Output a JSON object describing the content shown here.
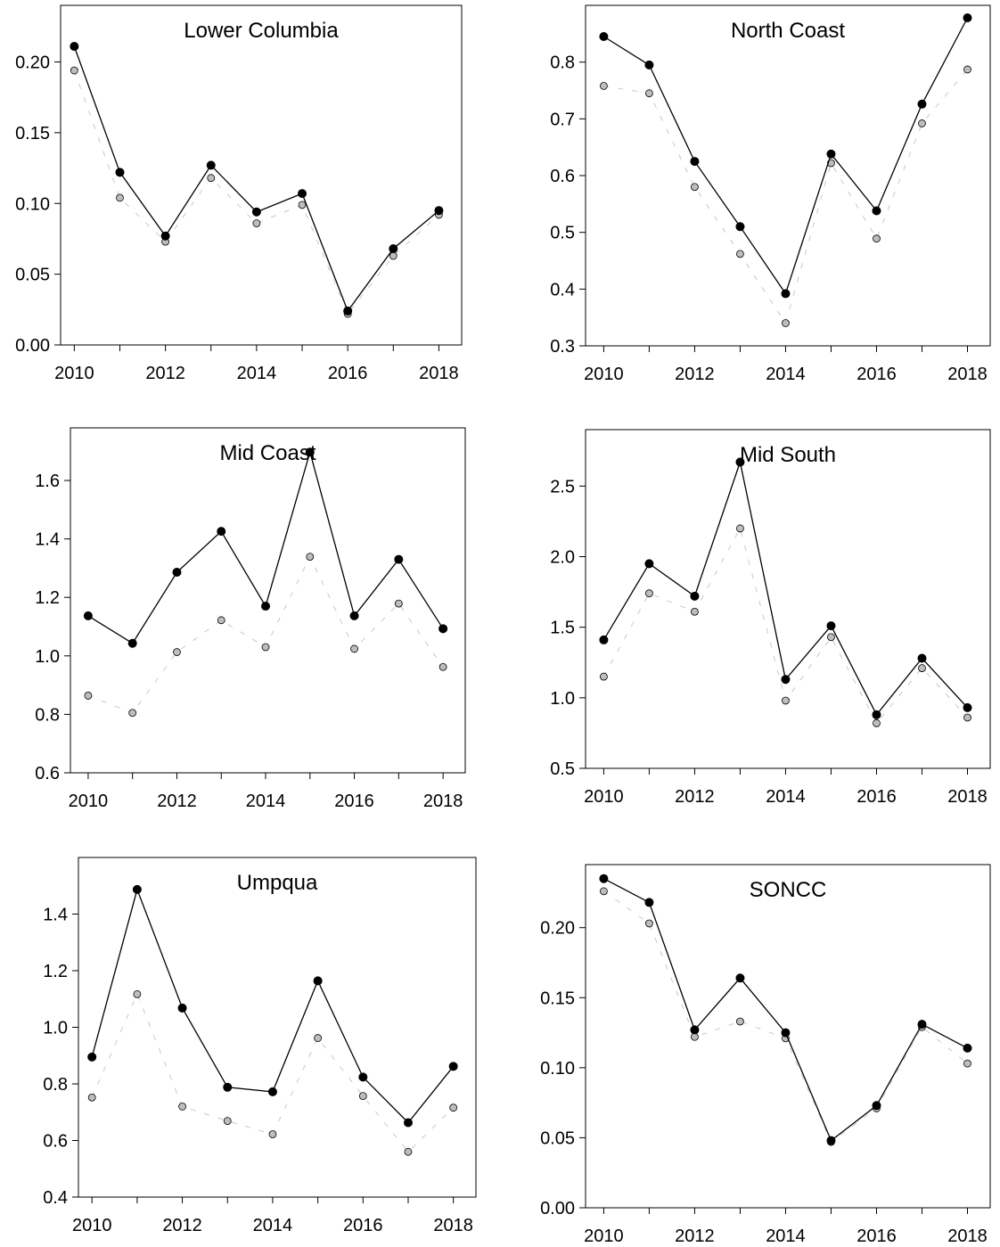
{
  "chart_data": [
    {
      "type": "line",
      "title": "Lower Columbia",
      "x": [
        2010,
        2011,
        2012,
        2013,
        2014,
        2015,
        2016,
        2017,
        2018
      ],
      "xticks": [
        "2010",
        "2012",
        "2014",
        "2016",
        "2018"
      ],
      "xlim": [
        2009.7,
        2018.5
      ],
      "ylim": [
        0,
        0.24
      ],
      "yticks": [
        "0.00",
        "0.05",
        "0.10",
        "0.15",
        "0.20"
      ],
      "series": [
        {
          "style": "black-solid",
          "color": "#000000",
          "values": [
            0.211,
            0.122,
            0.077,
            0.127,
            0.094,
            0.107,
            0.024,
            0.068,
            0.095
          ]
        },
        {
          "style": "grey-dashed",
          "color": "#bdbdbd",
          "values": [
            0.194,
            0.104,
            0.073,
            0.118,
            0.086,
            0.099,
            0.022,
            0.063,
            0.092
          ]
        }
      ]
    },
    {
      "type": "line",
      "title": "North Coast",
      "x": [
        2010,
        2011,
        2012,
        2013,
        2014,
        2015,
        2016,
        2017,
        2018
      ],
      "xticks": [
        "2010",
        "2012",
        "2014",
        "2016",
        "2018"
      ],
      "xlim": [
        2009.6,
        2018.5
      ],
      "ylim": [
        0.3,
        0.9
      ],
      "yticks": [
        "0.3",
        "0.4",
        "0.5",
        "0.6",
        "0.7",
        "0.8"
      ],
      "series": [
        {
          "style": "black-solid",
          "color": "#000000",
          "values": [
            0.845,
            0.795,
            0.625,
            0.51,
            0.392,
            0.638,
            0.538,
            0.726,
            0.878
          ]
        },
        {
          "style": "grey-dashed",
          "color": "#bdbdbd",
          "values": [
            0.758,
            0.745,
            0.58,
            0.462,
            0.34,
            0.622,
            0.489,
            0.692,
            0.787
          ]
        }
      ]
    },
    {
      "type": "line",
      "title": "Mid Coast",
      "x": [
        2010,
        2011,
        2012,
        2013,
        2014,
        2015,
        2016,
        2017,
        2018
      ],
      "xticks": [
        "2010",
        "2012",
        "2014",
        "2016",
        "2018"
      ],
      "xlim": [
        2009.6,
        2018.5
      ],
      "ylim": [
        0.6,
        1.78
      ],
      "yticks": [
        "0.6",
        "0.8",
        "1.0",
        "1.2",
        "1.4",
        "1.6"
      ],
      "series": [
        {
          "style": "black-solid",
          "color": "#000000",
          "values": [
            1.137,
            1.043,
            1.286,
            1.426,
            1.17,
            1.697,
            1.137,
            1.33,
            1.093
          ]
        },
        {
          "style": "grey-dashed",
          "color": "#bdbdbd",
          "values": [
            0.864,
            0.805,
            1.013,
            1.122,
            1.03,
            1.339,
            1.024,
            1.179,
            0.962
          ]
        }
      ]
    },
    {
      "type": "line",
      "title": "Mid South",
      "x": [
        2010,
        2011,
        2012,
        2013,
        2014,
        2015,
        2016,
        2017,
        2018
      ],
      "xticks": [
        "2010",
        "2012",
        "2014",
        "2016",
        "2018"
      ],
      "xlim": [
        2009.6,
        2018.5
      ],
      "ylim": [
        0.5,
        2.9
      ],
      "yticks": [
        "0.5",
        "1.0",
        "1.5",
        "2.0",
        "2.5"
      ],
      "series": [
        {
          "style": "black-solid",
          "color": "#000000",
          "values": [
            1.41,
            1.95,
            1.72,
            2.67,
            1.13,
            1.51,
            0.88,
            1.28,
            0.93
          ]
        },
        {
          "style": "grey-dashed",
          "color": "#bdbdbd",
          "values": [
            1.15,
            1.74,
            1.61,
            2.2,
            0.98,
            1.43,
            0.82,
            1.21,
            0.86
          ]
        }
      ]
    },
    {
      "type": "line",
      "title": "Umpqua",
      "x": [
        2010,
        2011,
        2012,
        2013,
        2014,
        2015,
        2016,
        2017,
        2018
      ],
      "xticks": [
        "2010",
        "2012",
        "2014",
        "2016",
        "2018"
      ],
      "xlim": [
        2009.7,
        2018.5
      ],
      "ylim": [
        0.4,
        1.6
      ],
      "yticks": [
        "0.4",
        "0.6",
        "0.8",
        "1.0",
        "1.2",
        "1.4"
      ],
      "series": [
        {
          "style": "black-solid",
          "color": "#000000",
          "values": [
            0.895,
            1.487,
            1.068,
            0.788,
            0.772,
            1.164,
            0.824,
            0.663,
            0.862
          ]
        },
        {
          "style": "grey-dashed",
          "color": "#bdbdbd",
          "values": [
            0.752,
            1.117,
            0.72,
            0.669,
            0.622,
            0.962,
            0.757,
            0.56,
            0.716
          ]
        }
      ]
    },
    {
      "type": "line",
      "title": "SONCC",
      "x": [
        2010,
        2011,
        2012,
        2013,
        2014,
        2015,
        2016,
        2017,
        2018
      ],
      "xticks": [
        "2010",
        "2012",
        "2014",
        "2016",
        "2018"
      ],
      "xlim": [
        2009.6,
        2018.5
      ],
      "ylim": [
        0,
        0.245
      ],
      "yticks": [
        "0.00",
        "0.05",
        "0.10",
        "0.15",
        "0.20"
      ],
      "series": [
        {
          "style": "black-solid",
          "color": "#000000",
          "values": [
            0.235,
            0.218,
            0.127,
            0.164,
            0.125,
            0.048,
            0.073,
            0.131,
            0.114
          ]
        },
        {
          "style": "grey-dashed",
          "color": "#bdbdbd",
          "values": [
            0.226,
            0.203,
            0.122,
            0.133,
            0.121,
            0.047,
            0.071,
            0.129,
            0.103
          ]
        }
      ]
    }
  ]
}
